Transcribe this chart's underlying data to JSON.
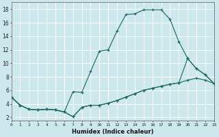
{
  "xlabel": "Humidex (Indice chaleur)",
  "background_color": "#cce8ec",
  "grid_color": "#ffffff",
  "line_color": "#1e6b5e",
  "xlim": [
    0,
    23
  ],
  "ylim": [
    1.5,
    19
  ],
  "xticks": [
    0,
    1,
    2,
    3,
    4,
    5,
    6,
    7,
    8,
    9,
    10,
    11,
    12,
    13,
    14,
    15,
    16,
    17,
    18,
    19,
    20,
    21,
    22,
    23
  ],
  "yticks": [
    2,
    4,
    6,
    8,
    10,
    12,
    14,
    16,
    18
  ],
  "line1_x": [
    0,
    1,
    2,
    3,
    4,
    5,
    6,
    7,
    8,
    9,
    10,
    11,
    12,
    13,
    14,
    15,
    16,
    17,
    18,
    19,
    20,
    21,
    22,
    23
  ],
  "line1_y": [
    5.0,
    3.8,
    3.2,
    3.1,
    3.2,
    3.1,
    2.8,
    2.1,
    3.5,
    3.8,
    3.8,
    4.1,
    4.5,
    5.0,
    5.5,
    6.0,
    6.3,
    6.6,
    6.9,
    7.1,
    7.5,
    7.8,
    7.5,
    7.0
  ],
  "line2_x": [
    0,
    1,
    2,
    3,
    4,
    5,
    6,
    7,
    8,
    9,
    10,
    11,
    12,
    13,
    14,
    15,
    16,
    17,
    18,
    19,
    20,
    21,
    22,
    23
  ],
  "line2_y": [
    5.0,
    3.8,
    3.2,
    3.1,
    3.2,
    3.1,
    2.8,
    5.8,
    5.7,
    8.8,
    11.8,
    12.0,
    14.8,
    17.2,
    17.3,
    17.9,
    17.9,
    17.9,
    16.5,
    13.2,
    10.7,
    9.2,
    8.3,
    7.0
  ],
  "line3_x": [
    0,
    1,
    2,
    3,
    4,
    5,
    6,
    7,
    8,
    9,
    10,
    11,
    12,
    13,
    14,
    15,
    16,
    17,
    18,
    19,
    20,
    21,
    22,
    23
  ],
  "line3_y": [
    5.0,
    3.8,
    3.2,
    3.1,
    3.2,
    3.1,
    2.8,
    2.1,
    3.5,
    3.8,
    3.8,
    4.1,
    4.5,
    5.0,
    5.5,
    6.0,
    6.3,
    6.6,
    6.9,
    7.1,
    10.7,
    9.2,
    8.3,
    7.0
  ]
}
